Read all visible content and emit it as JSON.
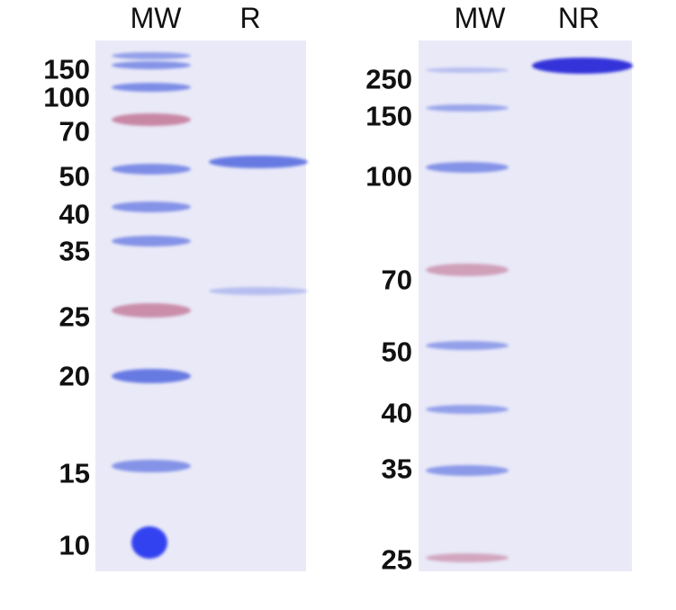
{
  "left_panel": {
    "headers": [
      "MW",
      "R"
    ],
    "markers": [
      "150",
      "100",
      "70",
      "50",
      "40",
      "35",
      "25",
      "20",
      "15",
      "10"
    ]
  },
  "right_panel": {
    "headers": [
      "MW",
      "NR"
    ],
    "markers": [
      "250",
      "150",
      "100",
      "70",
      "50",
      "40",
      "35",
      "25"
    ]
  },
  "colors": {
    "gel": "#e9e9f8",
    "band_blue": "#5a6fe0",
    "band_pink": "#c07090",
    "band_dark": "#2a2ad8"
  }
}
